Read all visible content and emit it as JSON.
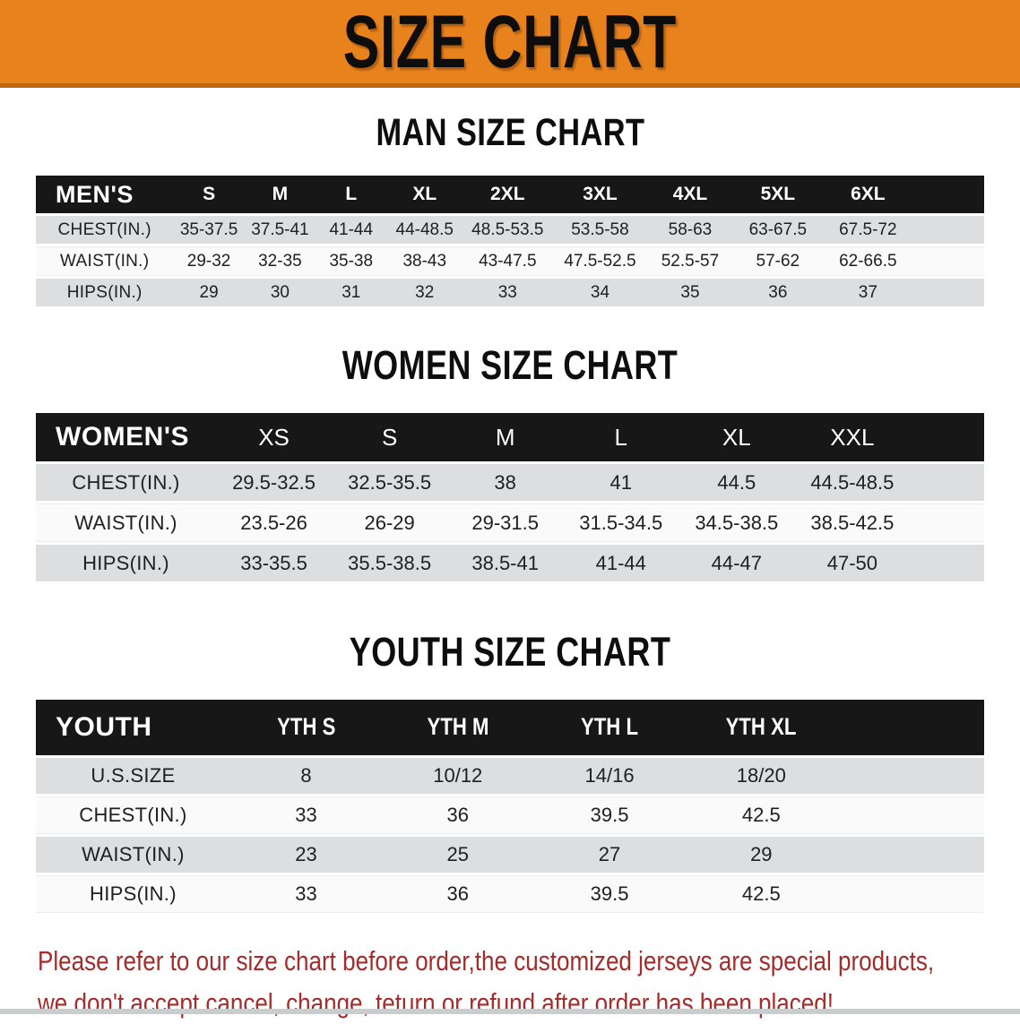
{
  "banner": {
    "title": "SIZE CHART",
    "bg_color": "#E8821C",
    "border_color": "#C0660E",
    "text_color": "#0d0d0d"
  },
  "sections": {
    "men": {
      "heading": "MAN SIZE CHART",
      "label": "MEN'S",
      "sizes": [
        "S",
        "M",
        "L",
        "XL",
        "2XL",
        "3XL",
        "4XL",
        "5XL",
        "6XL"
      ],
      "rows": [
        {
          "label": "CHEST(IN.)",
          "values": [
            "35-37.5",
            "37.5-41",
            "41-44",
            "44-48.5",
            "48.5-53.5",
            "53.5-58",
            "58-63",
            "63-67.5",
            "67.5-72"
          ]
        },
        {
          "label": "WAIST(IN.)",
          "values": [
            "29-32",
            "32-35",
            "35-38",
            "38-43",
            "43-47.5",
            "47.5-52.5",
            "52.5-57",
            "57-62",
            "62-66.5"
          ]
        },
        {
          "label": "HIPS(IN.)",
          "values": [
            "29",
            "30",
            "31",
            "32",
            "33",
            "34",
            "35",
            "36",
            "37"
          ]
        }
      ]
    },
    "women": {
      "heading": "WOMEN SIZE CHART",
      "label": "WOMEN'S",
      "sizes": [
        "XS",
        "S",
        "M",
        "L",
        "XL",
        "XXL"
      ],
      "rows": [
        {
          "label": "CHEST(IN.)",
          "values": [
            "29.5-32.5",
            "32.5-35.5",
            "38",
            "41",
            "44.5",
            "44.5-48.5"
          ]
        },
        {
          "label": "WAIST(IN.)",
          "values": [
            "23.5-26",
            "26-29",
            "29-31.5",
            "31.5-34.5",
            "34.5-38.5",
            "38.5-42.5"
          ]
        },
        {
          "label": "HIPS(IN.)",
          "values": [
            "33-35.5",
            "35.5-38.5",
            "38.5-41",
            "41-44",
            "44-47",
            "47-50"
          ]
        }
      ]
    },
    "youth": {
      "heading": "YOUTH SIZE CHART",
      "label": "YOUTH",
      "sizes": [
        "YTH S",
        "YTH M",
        "YTH L",
        "YTH XL"
      ],
      "rows": [
        {
          "label": "U.S.SIZE",
          "values": [
            "8",
            "10/12",
            "14/16",
            "18/20"
          ]
        },
        {
          "label": "CHEST(IN.)",
          "values": [
            "33",
            "36",
            "39.5",
            "42.5"
          ]
        },
        {
          "label": "WAIST(IN.)",
          "values": [
            "23",
            "25",
            "27",
            "29"
          ]
        },
        {
          "label": "HIPS(IN.)",
          "values": [
            "33",
            "36",
            "39.5",
            "42.5"
          ]
        }
      ]
    }
  },
  "table_colors": {
    "header_bg": "#171717",
    "header_text": "#ffffff",
    "row_gray": "#DCDEDF",
    "row_white": "#FAFAFB"
  },
  "footer": {
    "line1": "Please refer to our size chart before order,the customized jerseys are special products,",
    "line2": "we don't accept cancel, change, teturn or refund after order has been placed!",
    "text_color": "#A42D2B"
  }
}
